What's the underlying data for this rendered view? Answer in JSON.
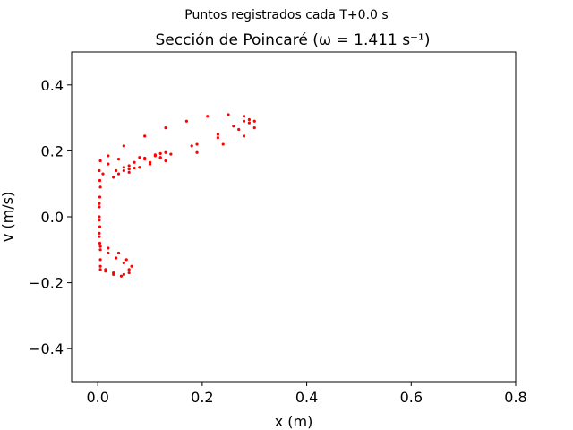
{
  "chart_data": {
    "type": "scatter",
    "suptitle": "Puntos registrados cada T+0.0 s",
    "title": "Sección de Poincaré (ω = 1.411 s⁻¹)",
    "xlabel": "x (m)",
    "ylabel": "v (m/s)",
    "xlim": [
      -0.05,
      0.8
    ],
    "ylim": [
      -0.5,
      0.5
    ],
    "xticks": [
      0.0,
      0.2,
      0.4,
      0.6,
      0.8
    ],
    "xtick_labels": [
      "0.0",
      "0.2",
      "0.4",
      "0.6",
      "0.8"
    ],
    "yticks": [
      -0.4,
      -0.2,
      0.0,
      0.2,
      0.4
    ],
    "ytick_labels": [
      "−0.4",
      "−0.2",
      "0.0",
      "0.2",
      "0.4"
    ],
    "grid": false,
    "marker_color": "#ff0000",
    "series": [
      {
        "x": [
          0.005,
          0.02,
          0.05,
          0.09,
          0.13,
          0.17,
          0.21,
          0.25,
          0.28,
          0.3,
          0.3,
          0.28,
          0.24,
          0.19,
          0.13,
          0.08,
          0.04,
          0.03,
          0.06,
          0.1,
          0.14,
          0.19,
          0.23,
          0.26,
          0.28,
          0.29,
          0.29,
          0.27,
          0.23,
          0.18,
          0.13,
          0.08,
          0.04,
          0.02,
          0.01,
          0.005,
          0.003
        ],
        "y": [
          0.17,
          0.185,
          0.215,
          0.245,
          0.27,
          0.29,
          0.305,
          0.31,
          0.305,
          0.29,
          0.27,
          0.245,
          0.22,
          0.195,
          0.17,
          0.15,
          0.13,
          0.12,
          0.135,
          0.16,
          0.19,
          0.22,
          0.25,
          0.275,
          0.29,
          0.295,
          0.285,
          0.265,
          0.24,
          0.215,
          0.195,
          0.18,
          0.175,
          0.16,
          0.13,
          0.09,
          0.04
        ]
      },
      {
        "x": [
          0.035,
          0.06,
          0.09,
          0.11,
          0.12,
          0.12,
          0.1,
          0.08,
          0.06,
          0.05,
          0.07,
          0.09,
          0.11,
          0.12,
          0.1,
          0.07,
          0.05
        ],
        "y": [
          0.14,
          0.155,
          0.175,
          0.188,
          0.192,
          0.18,
          0.165,
          0.15,
          0.145,
          0.15,
          0.165,
          0.178,
          0.185,
          0.178,
          0.16,
          0.148,
          0.14
        ]
      },
      {
        "x": [
          0.003,
          0.003,
          0.003,
          0.004,
          0.004,
          0.003,
          0.003,
          0.004,
          0.004,
          0.003
        ],
        "y": [
          0.03,
          -0.01,
          -0.05,
          -0.08,
          0.11,
          0.14,
          0.0,
          -0.03,
          0.06,
          -0.06
        ]
      },
      {
        "x": [
          0.005,
          0.02,
          0.04,
          0.055,
          0.065,
          0.06,
          0.045,
          0.03,
          0.015,
          0.005,
          0.005,
          0.02,
          0.035,
          0.05,
          0.06,
          0.05,
          0.03,
          0.015,
          0.005,
          0.005
        ],
        "y": [
          -0.09,
          -0.095,
          -0.11,
          -0.13,
          -0.15,
          -0.17,
          -0.18,
          -0.175,
          -0.165,
          -0.16,
          -0.1,
          -0.11,
          -0.125,
          -0.14,
          -0.16,
          -0.175,
          -0.17,
          -0.16,
          -0.15,
          -0.13
        ]
      }
    ]
  }
}
